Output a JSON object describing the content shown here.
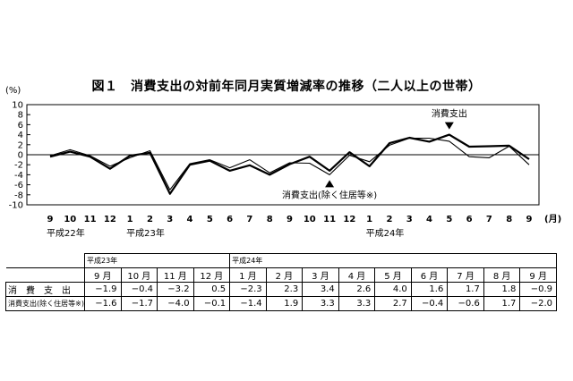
{
  "title": "図１　消費支出の対前年同月実質増減率の推移（二人以上の世帯）",
  "chart_data": {
    "type": "line",
    "title": "図１　消費支出の対前年同月実質増減率の推移（二人以上の世帯）",
    "y_unit": "(%)",
    "x_unit": "(月)",
    "ylim": [
      -10,
      10
    ],
    "y_ticks": [
      10,
      8,
      6,
      4,
      2,
      0,
      -2,
      -4,
      -6,
      -8,
      -10
    ],
    "categories": [
      "9",
      "10",
      "11",
      "12",
      "1",
      "2",
      "3",
      "4",
      "5",
      "6",
      "7",
      "8",
      "9",
      "10",
      "11",
      "12",
      "1",
      "2",
      "3",
      "4",
      "5",
      "6",
      "7",
      "8",
      "9"
    ],
    "era_labels": [
      {
        "index": 0,
        "text": "平成22年"
      },
      {
        "index": 4,
        "text": "平成23年"
      },
      {
        "index": 16,
        "text": "平成24年"
      }
    ],
    "series": [
      {
        "name": "消費支出",
        "values": [
          -0.4,
          0.6,
          -0.4,
          -2.8,
          -0.2,
          0.4,
          -7.8,
          -2.0,
          -1.2,
          -3.2,
          -2.1,
          -4.0,
          -1.9,
          -0.4,
          -3.2,
          0.5,
          -2.3,
          2.3,
          3.4,
          2.6,
          4.0,
          1.6,
          1.7,
          1.8,
          -0.9
        ]
      },
      {
        "name": "消費支出(除く住居等※)",
        "values": [
          -0.2,
          1.0,
          -0.2,
          -2.3,
          -0.6,
          0.8,
          -7.0,
          -1.8,
          -1.0,
          -2.6,
          -1.0,
          -3.6,
          -1.6,
          -1.7,
          -4.0,
          -0.1,
          -1.4,
          1.9,
          3.3,
          3.3,
          2.7,
          -0.4,
          -0.6,
          1.7,
          -2.0
        ]
      }
    ],
    "annotations": [
      {
        "text": "消費支出",
        "index": 20
      },
      {
        "text": "消費支出(除く住居等※)",
        "index": 14
      }
    ]
  },
  "table": {
    "era_headers": [
      {
        "text": "平成23年",
        "span": 4
      },
      {
        "text": "平成24年",
        "span": 9
      }
    ],
    "months": [
      "9 月",
      "10 月",
      "11 月",
      "12 月",
      "1 月",
      "2 月",
      "3 月",
      "4 月",
      "5 月",
      "6 月",
      "7 月",
      "8 月",
      "9 月"
    ],
    "rows": [
      {
        "label": "消　費　支　出",
        "values": [
          "−1.9",
          "−0.4",
          "−3.2",
          "0.5",
          "−2.3",
          "2.3",
          "3.4",
          "2.6",
          "4.0",
          "1.6",
          "1.7",
          "1.8",
          "−0.9"
        ]
      },
      {
        "label": "消費支出(除く住居等※)",
        "values": [
          "−1.6",
          "−1.7",
          "−4.0",
          "−0.1",
          "−1.4",
          "1.9",
          "3.3",
          "3.3",
          "2.7",
          "−0.4",
          "−0.6",
          "1.7",
          "−2.0"
        ]
      }
    ]
  }
}
